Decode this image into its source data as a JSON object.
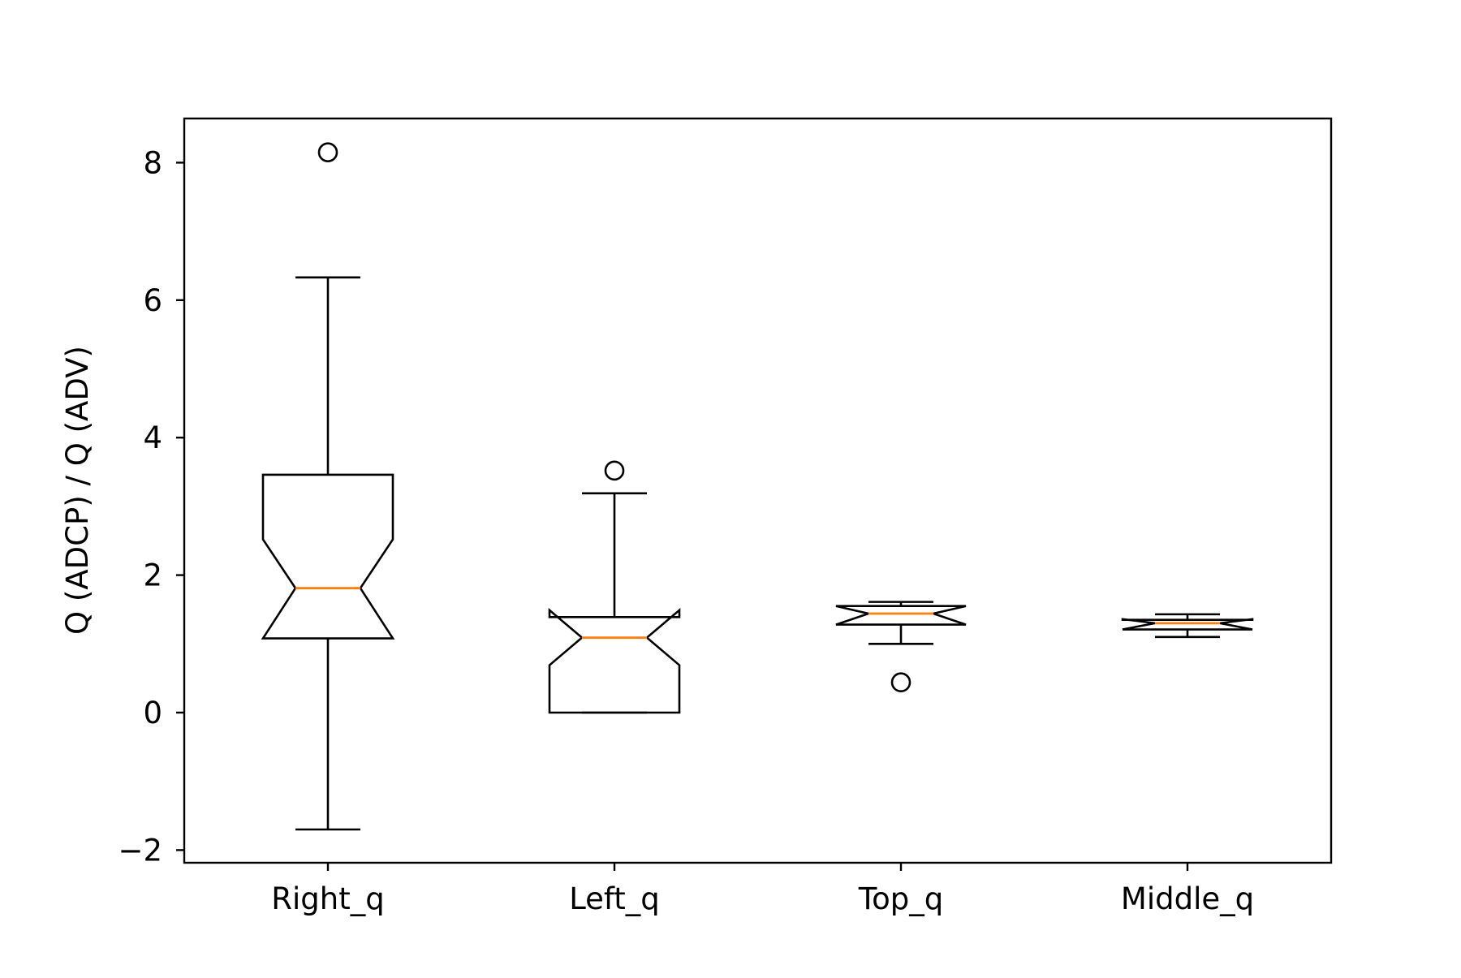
{
  "chart_data": {
    "type": "boxplot",
    "notched": true,
    "title": "",
    "xlabel": "",
    "ylabel": "Q (ADCP) / Q (ADV)",
    "ylim": [
      -2.18,
      8.65
    ],
    "yticks": [
      -2,
      0,
      2,
      4,
      6,
      8
    ],
    "ytick_labels": [
      "−2",
      "0",
      "2",
      "4",
      "6",
      "8"
    ],
    "grid": false,
    "legend": "none",
    "categories": [
      "Right_q",
      "Left_q",
      "Top_q",
      "Middle_q"
    ],
    "boxes": [
      {
        "category": "Right_q",
        "whisker_low": -1.7,
        "q1": 1.08,
        "median": 1.81,
        "q3": 3.46,
        "whisker_high": 6.33,
        "notch_low": 1.08,
        "notch_high": 2.52,
        "outliers": [
          8.15
        ]
      },
      {
        "category": "Left_q",
        "whisker_low": 0.0,
        "q1": 0.0,
        "median": 1.09,
        "q3": 1.39,
        "whisker_high": 3.19,
        "notch_low": 0.69,
        "notch_high": 1.49,
        "outliers": [
          3.52
        ]
      },
      {
        "category": "Top_q",
        "whisker_low": 1.0,
        "q1": 1.28,
        "median": 1.44,
        "q3": 1.55,
        "whisker_high": 1.61,
        "notch_low": 1.28,
        "notch_high": 1.55,
        "outliers": [
          0.44
        ]
      },
      {
        "category": "Middle_q",
        "whisker_low": 1.1,
        "q1": 1.21,
        "median": 1.3,
        "q3": 1.35,
        "whisker_high": 1.43,
        "notch_low": 1.21,
        "notch_high": 1.36,
        "outliers": []
      }
    ],
    "colors": {
      "box": "#000000",
      "median": "#ff7f0e",
      "outlier": "#000000"
    }
  }
}
